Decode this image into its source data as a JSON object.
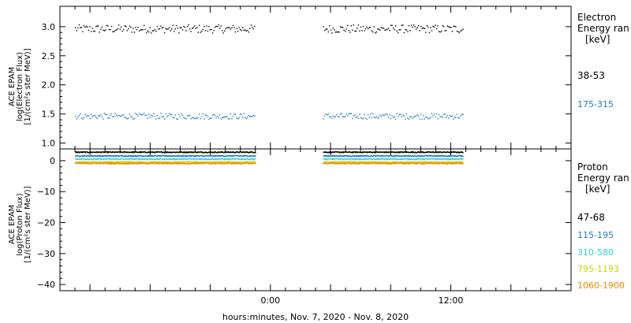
{
  "chart_data": [
    {
      "type": "scatter",
      "panel": "electron",
      "ylabel_lines": [
        "ACE EPAM",
        "log(Electron Flux)",
        "[1/(cm²s ster MeV)]"
      ],
      "legend_title_lines": [
        "Electron",
        "Energy ran",
        "[keV]"
      ],
      "y_ticks": [
        {
          "value": 3.0,
          "label": "3.0"
        },
        {
          "value": 2.5,
          "label": "2.5"
        },
        {
          "value": 2.0,
          "label": "2.0"
        },
        {
          "value": 1.5,
          "label": "1.5"
        },
        {
          "value": 1.0,
          "label": "1.0"
        }
      ],
      "ylim": [
        0.9,
        3.35
      ],
      "series": [
        {
          "name": "38-53",
          "color": "#000000",
          "mean": 2.97,
          "spread": 0.07
        },
        {
          "name": "175-315",
          "color": "#1f77d0",
          "mean": 1.47,
          "spread": 0.05
        }
      ]
    },
    {
      "type": "scatter",
      "panel": "proton",
      "ylabel_lines": [
        "ACE EPAM",
        "log(Proton Flux)",
        "[1/(cm²s ster MeV)]"
      ],
      "legend_title_lines": [
        "Proton",
        "Energy ran",
        "[keV]"
      ],
      "y_ticks": [
        {
          "value": 0,
          "label": "0"
        },
        {
          "value": -10,
          "label": "−10"
        },
        {
          "value": -20,
          "label": "−20"
        },
        {
          "value": -30,
          "label": "−30"
        },
        {
          "value": -40,
          "label": "−40"
        }
      ],
      "ylim": [
        -42,
        3.8
      ],
      "series": [
        {
          "name": "47-68",
          "color": "#000000",
          "mean": 2.9,
          "spread": 0.15
        },
        {
          "name": "115-195",
          "color": "#1f77d0",
          "mean": 1.7,
          "spread": 0.15
        },
        {
          "name": "310-580",
          "color": "#26d4d4",
          "mean": 0.7,
          "spread": 0.15
        },
        {
          "name": "795-1193",
          "color": "#c8d600",
          "mean": -0.3,
          "spread": 0.2
        },
        {
          "name": "1060-1900",
          "color": "#f08a00",
          "mean": -0.7,
          "spread": 0.2
        }
      ]
    }
  ],
  "x_axis": {
    "title": "hours:minutes, Nov.  7, 2020 - Nov.  8, 2020",
    "range_hours": [
      -14,
      20
    ],
    "major_ticks": [
      {
        "hour": 0,
        "label": "0:00"
      },
      {
        "hour": 12,
        "label": "12:00"
      }
    ],
    "minor_tick_every_hours": 1,
    "data_segments_hours": [
      [
        -13,
        -1
      ],
      [
        3.5,
        12.8
      ]
    ]
  }
}
